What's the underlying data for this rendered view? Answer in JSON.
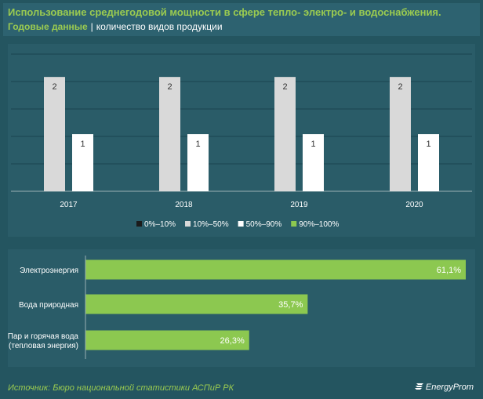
{
  "header": {
    "title": "Использование среднегодовой мощности в сфере тепло-  электро- и водоснабжения.",
    "subtitle_bold": "Годовые данные",
    "subtitle_sep": "|",
    "subtitle_rest": "количество видов продукции"
  },
  "chart_data": [
    {
      "type": "bar",
      "categories": [
        "2017",
        "2018",
        "2019",
        "2020"
      ],
      "series": [
        {
          "name": "0%–10%",
          "color": "#1b1b1b",
          "values": [
            0,
            0,
            0,
            0
          ]
        },
        {
          "name": "10%–50%",
          "color": "#d9d9d9",
          "values": [
            2,
            2,
            2,
            2
          ]
        },
        {
          "name": "50%–90%",
          "color": "#ffffff",
          "values": [
            1,
            1,
            1,
            1
          ]
        },
        {
          "name": "90%–100%",
          "color": "#8cc850",
          "values": [
            0,
            0,
            0,
            0
          ]
        }
      ],
      "ylim": [
        0,
        2.4
      ],
      "grid": true,
      "legend": "bottom"
    },
    {
      "type": "bar",
      "orientation": "horizontal",
      "categories": [
        "Электроэнергия",
        "Вода природная",
        "Пар и горячая вода (тепловая энергия)"
      ],
      "category_lines": [
        [
          "Электроэнергия"
        ],
        [
          "Вода природная"
        ],
        [
          "Пар и горячая вода",
          "(тепловая энергия)"
        ]
      ],
      "values": [
        61.1,
        35.7,
        26.3
      ],
      "value_labels": [
        "61,1%",
        "35,7%",
        "26,3%"
      ],
      "color": "#8cc850",
      "xlim": [
        0,
        61.1
      ]
    }
  ],
  "footer": {
    "source": "Источник: Бюро национальной  статистики АСПиР РК",
    "logo": "EnergyProm"
  }
}
